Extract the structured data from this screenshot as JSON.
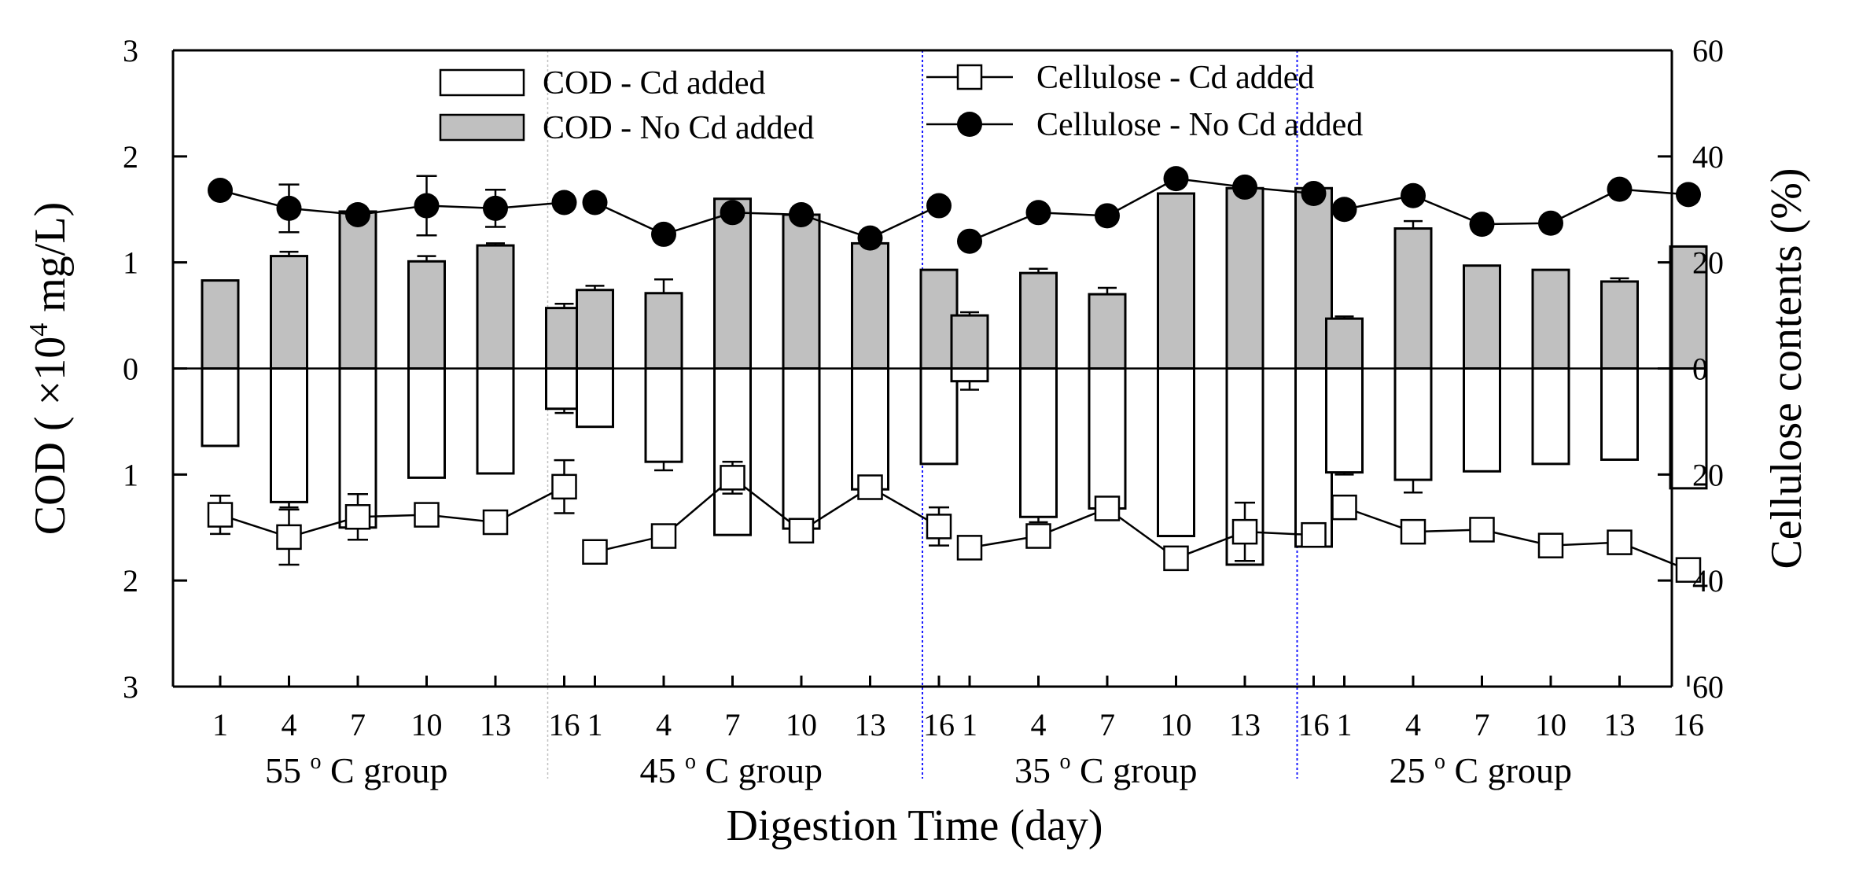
{
  "chart_data": {
    "type": "bar",
    "title": "",
    "xlabel": "Digestion Time (day)",
    "ylabel_left": "COD ( × 10⁴ mg/L)",
    "ylabel_left_parts": {
      "pre": "COD (",
      "times": "×",
      "base": "10",
      "exp": "4",
      "post": " mg/L)"
    },
    "ylabel_right": "Cellulose contents (%)",
    "ylim_left": [
      -3,
      3
    ],
    "ylim_right": [
      -60,
      60
    ],
    "left_ticks": [
      {
        "value": 3,
        "label": "3"
      },
      {
        "value": 2,
        "label": "2"
      },
      {
        "value": 1,
        "label": "1"
      },
      {
        "value": 0,
        "label": "0"
      },
      {
        "value": -1,
        "label": "1"
      },
      {
        "value": -2,
        "label": "2"
      },
      {
        "value": -3,
        "label": "3"
      }
    ],
    "right_ticks": [
      {
        "value": 60,
        "label": "60"
      },
      {
        "value": 40,
        "label": "40"
      },
      {
        "value": 20,
        "label": "20"
      },
      {
        "value": 0,
        "label": "0"
      },
      {
        "value": -20,
        "label": "20"
      },
      {
        "value": -40,
        "label": "40"
      },
      {
        "value": -60,
        "label": "60"
      }
    ],
    "days": [
      "1",
      "4",
      "7",
      "10",
      "13",
      "16"
    ],
    "groups": [
      {
        "label": "55 ºC group",
        "temp": "55",
        "degree": "o",
        "unit": "C group",
        "cod_no_cd": [
          0.83,
          1.06,
          1.48,
          1.01,
          1.16,
          0.57
        ],
        "cod_no_cd_err": [
          0,
          0.04,
          0,
          0.05,
          0.02,
          0.04
        ],
        "cod_cd": [
          -0.73,
          -1.26,
          -1.5,
          -1.03,
          -0.99,
          -0.38
        ],
        "cod_cd_err": [
          0,
          0.05,
          0,
          0,
          0,
          0.04
        ],
        "cellulose_no_cd": [
          33.6,
          30.2,
          29.0,
          30.7,
          30.2,
          31.3
        ],
        "cellulose_no_cd_err": [
          0,
          4.5,
          0,
          5.6,
          3.5,
          0
        ],
        "cellulose_cd": [
          -27.6,
          -31.8,
          -28.0,
          -27.6,
          -29.0,
          -22.3
        ],
        "cellulose_cd_err": [
          3.6,
          5.2,
          4.3,
          0,
          0,
          5.0
        ]
      },
      {
        "label": "45 ºC group",
        "temp": "45",
        "degree": "o",
        "unit": "C group",
        "cod_no_cd": [
          0.74,
          0.71,
          1.6,
          1.45,
          1.18,
          0.93
        ],
        "cod_no_cd_err": [
          0.04,
          0.13,
          0,
          0,
          0,
          0
        ],
        "cod_cd": [
          -0.55,
          -0.88,
          -1.57,
          -1.51,
          -1.14,
          -0.9
        ],
        "cod_cd_err": [
          0,
          0.08,
          0,
          0,
          0,
          0
        ],
        "cellulose_no_cd": [
          31.3,
          25.3,
          29.4,
          29.0,
          24.6,
          30.7
        ],
        "cellulose_no_cd_err": [
          0,
          0,
          0,
          0,
          0,
          0
        ],
        "cellulose_cd": [
          -34.6,
          -31.6,
          -20.6,
          -30.6,
          -22.4,
          -29.8
        ],
        "cellulose_cd_err": [
          0,
          0,
          3.0,
          0,
          0,
          3.6
        ]
      },
      {
        "label": "35 ºC group",
        "temp": "35",
        "degree": "o",
        "unit": "C group",
        "cod_no_cd": [
          0.5,
          0.9,
          0.7,
          1.65,
          1.7,
          1.7
        ],
        "cod_no_cd_err": [
          0.03,
          0.04,
          0.06,
          0,
          0,
          0
        ],
        "cod_cd": [
          -0.12,
          -1.4,
          -1.32,
          -1.58,
          -1.85,
          -1.68
        ],
        "cod_cd_err": [
          0.08,
          0.05,
          0,
          0,
          0,
          0
        ],
        "cellulose_no_cd": [
          24.0,
          29.4,
          28.8,
          35.8,
          34.2,
          33.0
        ],
        "cellulose_no_cd_err": [
          0,
          0,
          0,
          0,
          0,
          0
        ],
        "cellulose_cd": [
          -33.8,
          -31.6,
          -26.4,
          -35.8,
          -30.8,
          -31.4
        ],
        "cellulose_cd_err": [
          0,
          0,
          0,
          0,
          5.5,
          0
        ]
      },
      {
        "label": "25 ºC group",
        "temp": "25",
        "degree": "o",
        "unit": "C group",
        "cod_no_cd": [
          0.47,
          1.32,
          0.97,
          0.93,
          0.82,
          1.15
        ],
        "cod_no_cd_err": [
          0.02,
          0.07,
          0,
          0,
          0.03,
          0
        ],
        "cod_cd": [
          -0.98,
          -1.05,
          -0.97,
          -0.9,
          -0.86,
          -1.13
        ],
        "cod_cd_err": [
          0.02,
          0.12,
          0,
          0,
          0,
          0
        ],
        "cellulose_no_cd": [
          30.0,
          32.6,
          27.2,
          27.4,
          33.8,
          32.8
        ],
        "cellulose_no_cd_err": [
          0,
          0,
          0,
          0,
          0,
          0
        ],
        "cellulose_cd": [
          -26.2,
          -30.8,
          -30.4,
          -33.4,
          -32.8,
          -38.0
        ],
        "cellulose_cd_err": [
          0,
          0,
          0,
          0,
          0,
          0
        ]
      }
    ],
    "legend": [
      {
        "key": "cod_cd",
        "label": "COD - Cd added",
        "style": "open-bar"
      },
      {
        "key": "cod_no_cd",
        "label": "COD - No Cd added",
        "style": "gray-bar"
      },
      {
        "key": "cellulose_cd",
        "label": "Cellulose - Cd added",
        "style": "open-square-line"
      },
      {
        "key": "cellulose_no_cd",
        "label": "Cellulose - No Cd added",
        "style": "filled-circle-line"
      }
    ],
    "legend_position": "top-center",
    "colors": {
      "gray_fill": "#c0c0c0",
      "open_fill": "#ffffff",
      "line": "#000000",
      "group_separator_1": "#c0c0c0",
      "group_separator_2": "#1a1aff",
      "group_separator_3": "#1a1aff"
    }
  }
}
